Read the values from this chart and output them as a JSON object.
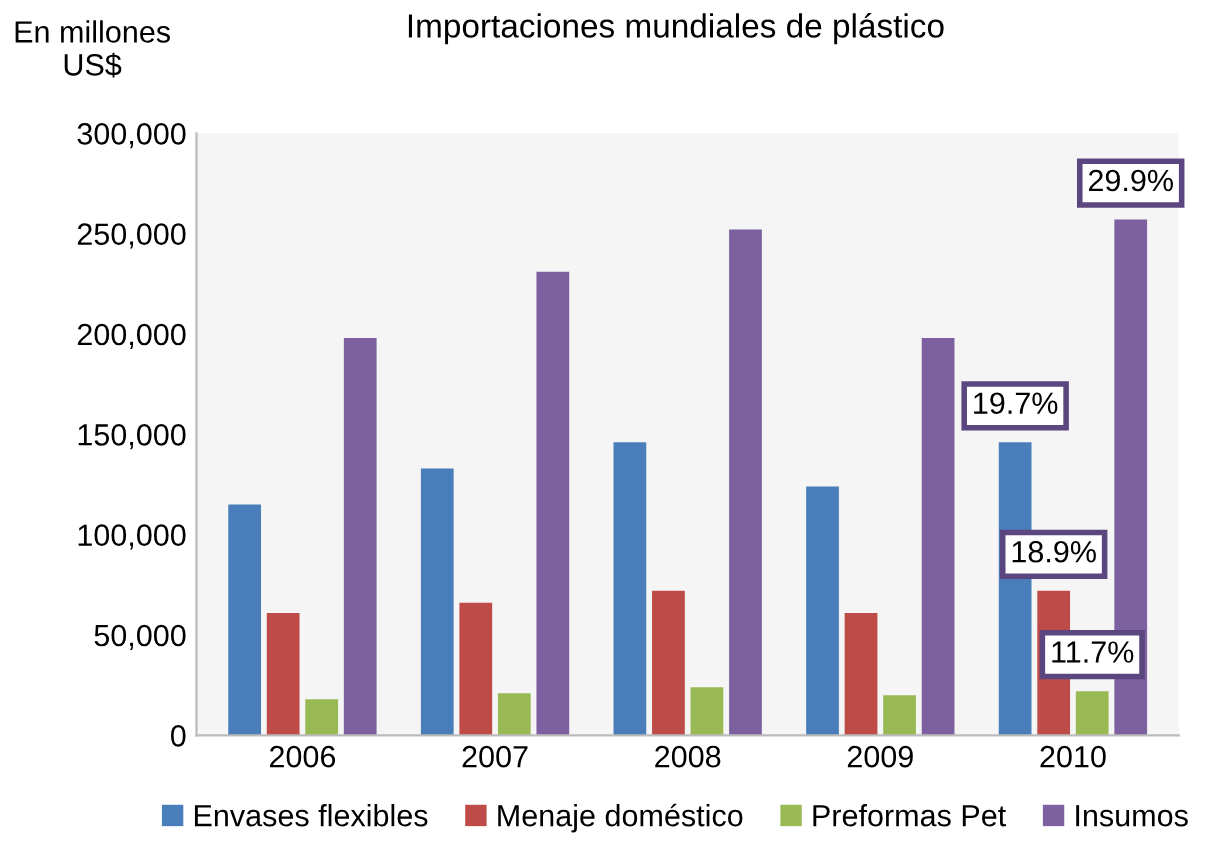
{
  "chart_data": {
    "type": "bar",
    "title": "Importaciones mundiales de plástico",
    "ylabel": "En millones\nUS$",
    "categories": [
      "2006",
      "2007",
      "2008",
      "2009",
      "2010"
    ],
    "series": [
      {
        "name": "Envases flexibles",
        "color": "#4a7ebb",
        "values": [
          115000,
          133000,
          146000,
          124000,
          146000
        ]
      },
      {
        "name": "Menaje doméstico",
        "color": "#be4b48",
        "values": [
          61000,
          66000,
          72000,
          61000,
          72000
        ]
      },
      {
        "name": "Preformas Pet",
        "color": "#98b954",
        "values": [
          18000,
          21000,
          24000,
          20000,
          22000
        ]
      },
      {
        "name": "Insumos",
        "color": "#7d60a0",
        "values": [
          198000,
          231000,
          252000,
          198000,
          257000
        ]
      }
    ],
    "annotations": [
      "19.7%",
      "18.9%",
      "11.7%",
      "29.9%"
    ],
    "ylim": [
      0,
      300000
    ],
    "yticks": [
      {
        "value": 0,
        "label": "0"
      },
      {
        "value": 50000,
        "label": "50,000"
      },
      {
        "value": 100000,
        "label": "100,000"
      },
      {
        "value": 150000,
        "label": "150,000"
      },
      {
        "value": 200000,
        "label": "200,000"
      },
      {
        "value": 250000,
        "label": "250,000"
      },
      {
        "value": 300000,
        "label": "300,000"
      }
    ],
    "legend": "bottom",
    "grid": false
  }
}
